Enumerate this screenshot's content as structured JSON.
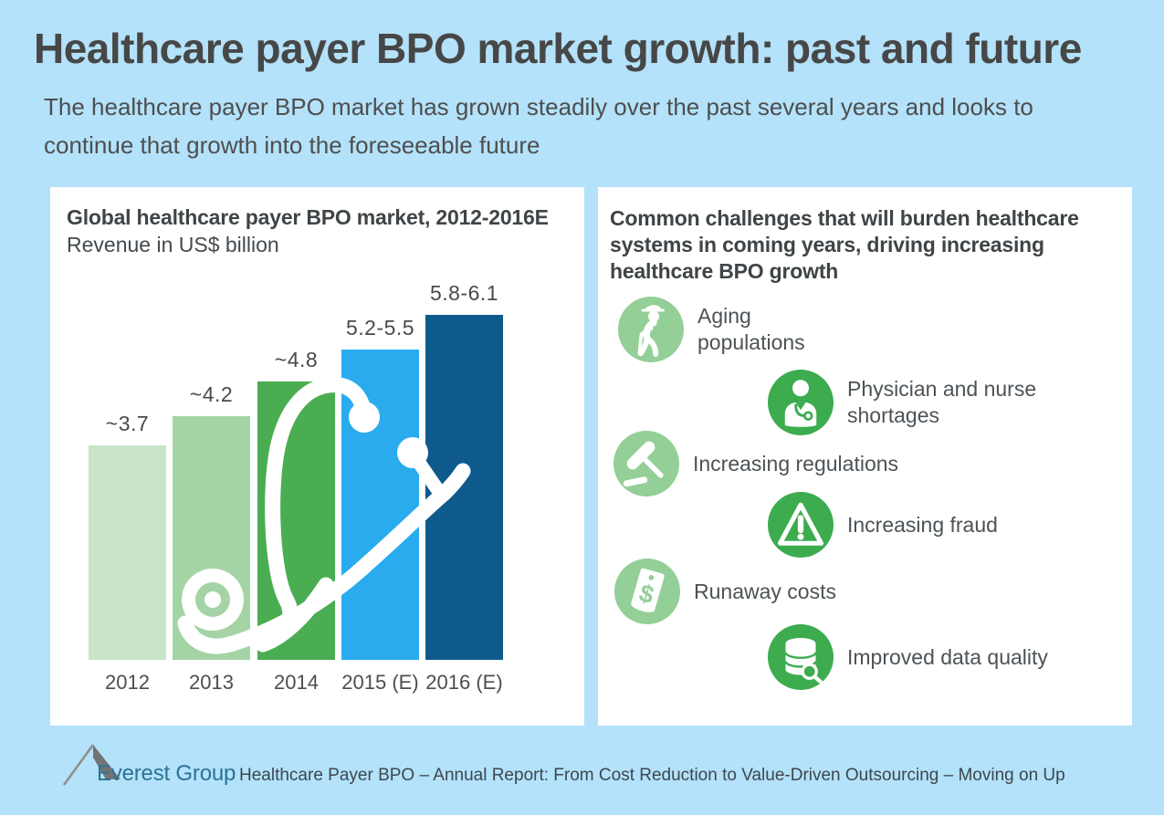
{
  "header": {
    "title": "Healthcare payer BPO market growth: past and future",
    "subtitle": "The healthcare payer BPO market has grown steadily over the past several years and looks to\ncontinue that growth into the foreseeable future"
  },
  "chart_panel": {
    "title": "Global healthcare payer BPO market, 2012-2016E",
    "unit_label": "Revenue in US$ billion"
  },
  "chart_data": {
    "type": "bar",
    "title": "Global healthcare payer BPO market, 2012-2016E",
    "xlabel": "",
    "ylabel": "Revenue in US$ billion",
    "categories": [
      "2012",
      "2013",
      "2014",
      "2015 (E)",
      "2016 (E)"
    ],
    "values": [
      3.7,
      4.2,
      4.8,
      5.35,
      5.95
    ],
    "value_labels": [
      "~3.7",
      "~4.2",
      "~4.8",
      "5.2-5.5",
      "5.8-6.1"
    ],
    "value_ranges": [
      [
        3.7,
        3.7
      ],
      [
        4.2,
        4.2
      ],
      [
        4.8,
        4.8
      ],
      [
        5.2,
        5.5
      ],
      [
        5.8,
        6.1
      ]
    ],
    "estimated_years": [
      "2015 (E)",
      "2016 (E)"
    ],
    "bar_colors": [
      "#c8e4c9",
      "#a4d4a5",
      "#4aad52",
      "#29abee",
      "#0e5a8c"
    ],
    "ylim": [
      0,
      6.5
    ],
    "grid": false,
    "legend": false,
    "decoration": "white stethoscope silhouette overlaid on bars"
  },
  "challenges_panel": {
    "heading": "Common challenges that will burden healthcare\nsystems in coming years, driving increasing\nhealthcare BPO growth",
    "items": [
      {
        "label": "Aging\npopulations",
        "icon": "elderly-person-icon",
        "tone": "light"
      },
      {
        "label": "Physician and nurse\nshortages",
        "icon": "physician-icon",
        "tone": "dark"
      },
      {
        "label": "Increasing regulations",
        "icon": "gavel-icon",
        "tone": "light"
      },
      {
        "label": "Increasing fraud",
        "icon": "warning-triangle-icon",
        "tone": "dark"
      },
      {
        "label": "Runaway costs",
        "icon": "price-tag-icon",
        "tone": "light"
      },
      {
        "label": "Improved data quality",
        "icon": "database-search-icon",
        "tone": "dark"
      }
    ]
  },
  "footer": {
    "logo_text": "Everest Group",
    "report_title": "Healthcare Payer BPO – Annual Report: From Cost Reduction to Value-Driven Outsourcing – Moving on Up"
  },
  "colors": {
    "background": "#b3e2fa",
    "panel": "#ffffff",
    "title_text": "#474747",
    "body_text": "#4c5256",
    "icon_light_green": "#93cf97",
    "icon_dark_green": "#3cac4f",
    "logo_blue": "#2d7294",
    "stethoscope": "#ffffff"
  }
}
